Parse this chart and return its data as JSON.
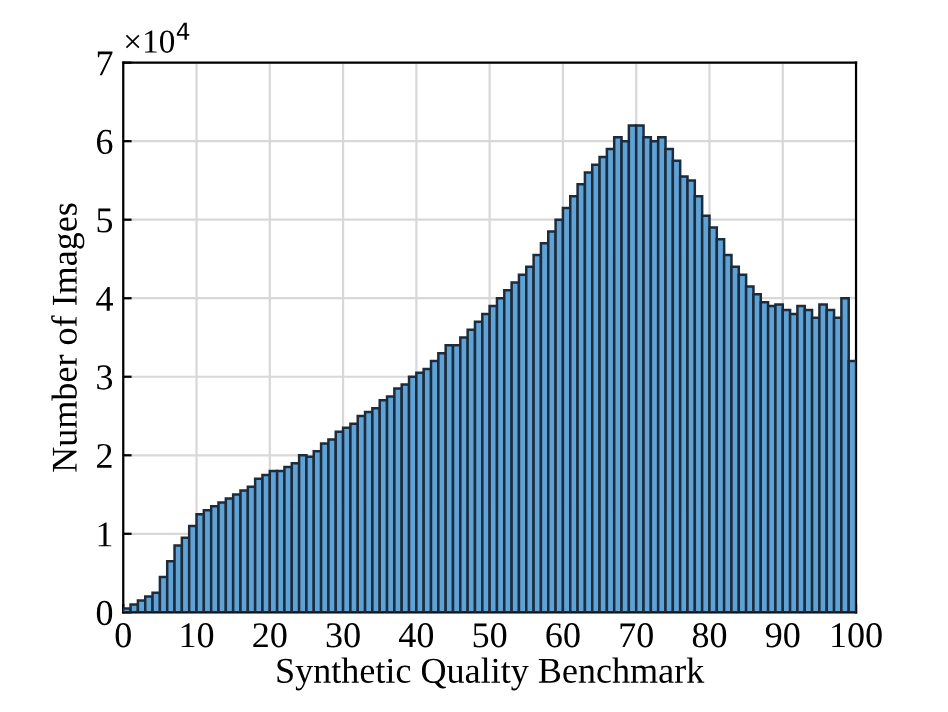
{
  "chart_data": {
    "type": "histogram",
    "xlabel": "Synthetic Quality Benchmark",
    "ylabel": "Number of Images",
    "annotations": [
      "×10$^{4}$"
    ],
    "bins": [
      0,
      1,
      2,
      3,
      4,
      5,
      6,
      7,
      8,
      9,
      10,
      11,
      12,
      13,
      14,
      15,
      16,
      17,
      18,
      19,
      20,
      21,
      22,
      23,
      24,
      25,
      26,
      27,
      28,
      29,
      30,
      31,
      32,
      33,
      34,
      35,
      36,
      37,
      38,
      39,
      40,
      41,
      42,
      43,
      44,
      45,
      46,
      47,
      48,
      49,
      50,
      51,
      52,
      53,
      54,
      55,
      56,
      57,
      58,
      59,
      60,
      61,
      62,
      63,
      64,
      65,
      66,
      67,
      68,
      69,
      70,
      71,
      72,
      73,
      74,
      75,
      76,
      77,
      78,
      79,
      80,
      81,
      82,
      83,
      84,
      85,
      86,
      87,
      88,
      89,
      90,
      91,
      92,
      93,
      94,
      95,
      96,
      97,
      98,
      99,
      100
    ],
    "values": [
      0.05,
      0.1,
      0.15,
      0.2,
      0.25,
      0.45,
      0.65,
      0.85,
      0.95,
      1.1,
      1.25,
      1.3,
      1.35,
      1.4,
      1.45,
      1.5,
      1.55,
      1.6,
      1.7,
      1.75,
      1.8,
      1.8,
      1.85,
      1.9,
      2.0,
      1.98,
      2.05,
      2.15,
      2.2,
      2.3,
      2.35,
      2.4,
      2.5,
      2.55,
      2.6,
      2.7,
      2.75,
      2.85,
      2.9,
      3.0,
      3.05,
      3.1,
      3.2,
      3.3,
      3.4,
      3.4,
      3.5,
      3.6,
      3.7,
      3.8,
      3.9,
      4.0,
      4.1,
      4.2,
      4.3,
      4.4,
      4.55,
      4.7,
      4.85,
      5.0,
      5.15,
      5.3,
      5.45,
      5.6,
      5.7,
      5.8,
      5.9,
      6.05,
      6.0,
      6.2,
      6.2,
      6.05,
      6.0,
      6.05,
      5.9,
      5.75,
      5.55,
      5.5,
      5.3,
      5.05,
      4.9,
      4.75,
      4.55,
      4.4,
      4.3,
      4.15,
      4.05,
      3.95,
      3.9,
      3.92,
      3.85,
      3.8,
      3.9,
      3.85,
      3.75,
      3.92,
      3.85,
      3.75,
      4.0,
      3.2
    ],
    "color": "#5fa3d6",
    "xlim": [
      0,
      100
    ],
    "xticks": [
      0,
      10,
      20,
      30,
      40,
      50,
      60,
      70,
      80,
      90,
      100
    ],
    "ylim": [
      0,
      7
    ],
    "yticks": [
      0,
      1,
      2,
      3,
      4,
      5,
      6,
      7
    ],
    "grid": true
  }
}
